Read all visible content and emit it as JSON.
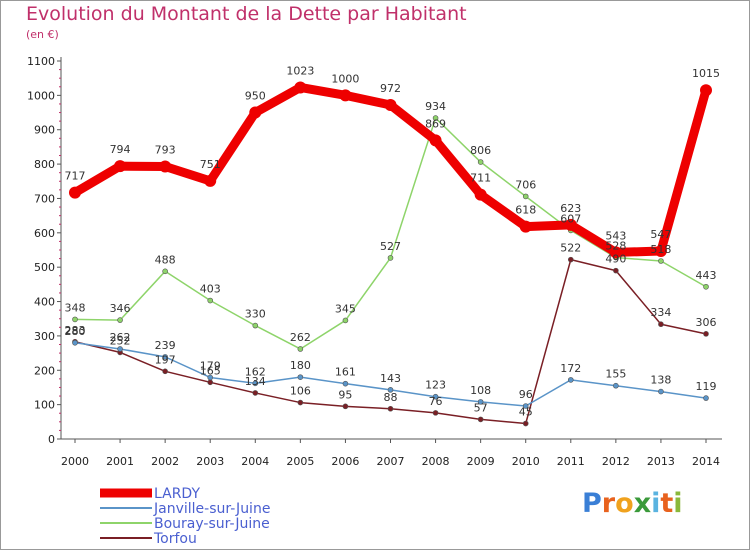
{
  "chart_data": {
    "type": "line",
    "title": "Evolution du Montant de la Dette par Habitant",
    "subtitle": "(en €)",
    "x": [
      "2000",
      "2001",
      "2002",
      "2003",
      "2004",
      "2005",
      "2006",
      "2007",
      "2008",
      "2009",
      "2010",
      "2011",
      "2012",
      "2013",
      "2014"
    ],
    "yticks": [
      0,
      100,
      200,
      300,
      400,
      500,
      600,
      700,
      800,
      900,
      1000,
      1100
    ],
    "ylim": [
      0,
      1100
    ],
    "grid": false,
    "legend_position": "bottom-left",
    "series": [
      {
        "name": "Torfou",
        "color": "#7a1f25",
        "width": 1.5,
        "marker": 5,
        "values": [
          283,
          252,
          197,
          165,
          134,
          106,
          95,
          88,
          76,
          57,
          45,
          522,
          490,
          334,
          306
        ]
      },
      {
        "name": "Janville-sur-Juine",
        "color": "#5a94c8",
        "width": 1.5,
        "marker": 5,
        "values": [
          280,
          262,
          239,
          179,
          162,
          180,
          161,
          143,
          123,
          108,
          96,
          172,
          155,
          138,
          119
        ]
      },
      {
        "name": "Bouray-sur-Juine",
        "color": "#8ed46a",
        "width": 1.5,
        "marker": 5,
        "values": [
          348,
          346,
          488,
          403,
          330,
          262,
          345,
          527,
          934,
          806,
          706,
          607,
          528,
          518,
          443
        ]
      },
      {
        "name": "LARDY",
        "color": "#ee0000",
        "width": 9,
        "marker": 12,
        "values": [
          717,
          794,
          793,
          751,
          950,
          1023,
          1000,
          972,
          869,
          711,
          618,
          623,
          543,
          547,
          1015
        ]
      }
    ],
    "legend_order": [
      "LARDY",
      "Janville-sur-Juine",
      "Bouray-sur-Juine",
      "Torfou"
    ]
  },
  "logo": {
    "text": "Proxiti"
  }
}
